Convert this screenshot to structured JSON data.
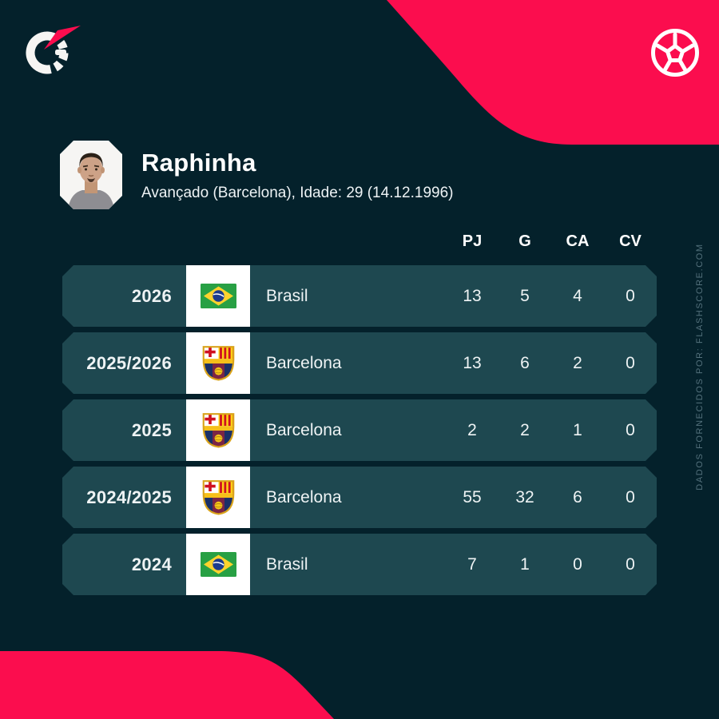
{
  "brand": {
    "logo_icon": "flashscore-logo",
    "ball_icon": "soccer-ball-icon",
    "colors": {
      "accent_pink": "#fb0d4e",
      "background": "#04212b",
      "row_background": "#1e4850",
      "badge_column": "#ffffff",
      "watermark_text": "#54717c"
    }
  },
  "player": {
    "name": "Raphinha",
    "details": "Avançado (Barcelona), Idade: 29 (14.12.1996)",
    "avatar": "player-avatar"
  },
  "table": {
    "columns": [
      "PJ",
      "G",
      "CA",
      "CV"
    ],
    "rows": [
      {
        "season": "2026",
        "badge": "brazil-flag",
        "team": "Brasil",
        "pj": "13",
        "g": "5",
        "ca": "4",
        "cv": "0"
      },
      {
        "season": "2025/2026",
        "badge": "barcelona-crest",
        "team": "Barcelona",
        "pj": "13",
        "g": "6",
        "ca": "2",
        "cv": "0"
      },
      {
        "season": "2025",
        "badge": "barcelona-crest",
        "team": "Barcelona",
        "pj": "2",
        "g": "2",
        "ca": "1",
        "cv": "0"
      },
      {
        "season": "2024/2025",
        "badge": "barcelona-crest",
        "team": "Barcelona",
        "pj": "55",
        "g": "32",
        "ca": "6",
        "cv": "0"
      },
      {
        "season": "2024",
        "badge": "brazil-flag",
        "team": "Brasil",
        "pj": "7",
        "g": "1",
        "ca": "0",
        "cv": "0"
      }
    ]
  },
  "watermark": "DADOS FORNECIDOS POR: FLASHSCORE.COM"
}
